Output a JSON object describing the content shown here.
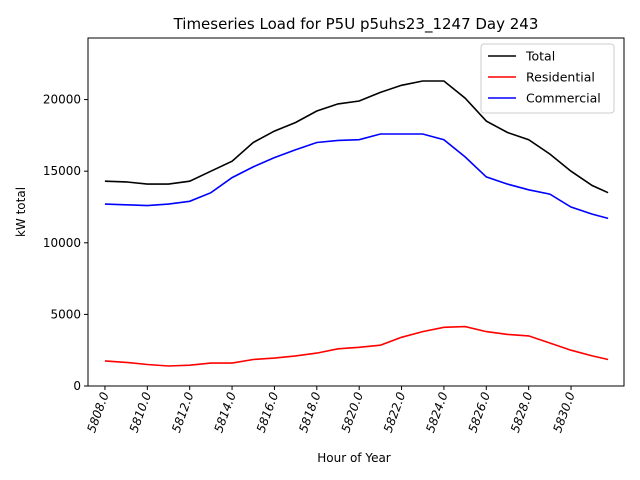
{
  "chart_data": {
    "type": "line",
    "title": "Timeseries Load for P5U p5uhs23_1247  Day 243",
    "xlabel": "Hour of Year",
    "ylabel": "kW total",
    "xlim": [
      5807.2,
      5832.5
    ],
    "ylim": [
      0,
      24300
    ],
    "xticks": [
      5808,
      5810,
      5812,
      5814,
      5816,
      5818,
      5820,
      5822,
      5824,
      5826,
      5828,
      5830
    ],
    "xtick_labels": [
      "5808.0",
      "5810.0",
      "5812.0",
      "5814.0",
      "5816.0",
      "5818.0",
      "5820.0",
      "5822.0",
      "5824.0",
      "5826.0",
      "5828.0",
      "5830.0"
    ],
    "yticks": [
      0,
      5000,
      10000,
      15000,
      20000
    ],
    "ytick_labels": [
      "0",
      "5000",
      "10000",
      "15000",
      "20000"
    ],
    "grid": false,
    "legend": "top-right",
    "x": [
      5808,
      5809,
      5810,
      5811,
      5812,
      5813,
      5814,
      5815,
      5816,
      5817,
      5818,
      5819,
      5820,
      5821,
      5822,
      5823,
      5824,
      5825,
      5826,
      5827,
      5828,
      5829,
      5830,
      5831,
      5831.75
    ],
    "series": [
      {
        "name": "Total",
        "color": "#000000",
        "values": [
          14300,
          14250,
          14100,
          14100,
          14300,
          15000,
          15700,
          17000,
          17800,
          18400,
          19200,
          19700,
          19900,
          20500,
          21000,
          21300,
          21300,
          20100,
          18500,
          17700,
          17200,
          16200,
          15000,
          14000,
          13500
        ]
      },
      {
        "name": "Residential",
        "color": "#ff0000",
        "values": [
          1750,
          1650,
          1500,
          1400,
          1450,
          1600,
          1600,
          1850,
          1950,
          2100,
          2300,
          2600,
          2700,
          2850,
          3400,
          3800,
          4100,
          4150,
          3800,
          3600,
          3500,
          3000,
          2500,
          2100,
          1850
        ]
      },
      {
        "name": "Commercial",
        "color": "#0000ff",
        "values": [
          12700,
          12650,
          12600,
          12700,
          12900,
          13500,
          14550,
          15300,
          15950,
          16500,
          17000,
          17150,
          17200,
          17600,
          17600,
          17600,
          17200,
          16000,
          14600,
          14100,
          13700,
          13400,
          12500,
          12000,
          11700
        ]
      }
    ]
  }
}
